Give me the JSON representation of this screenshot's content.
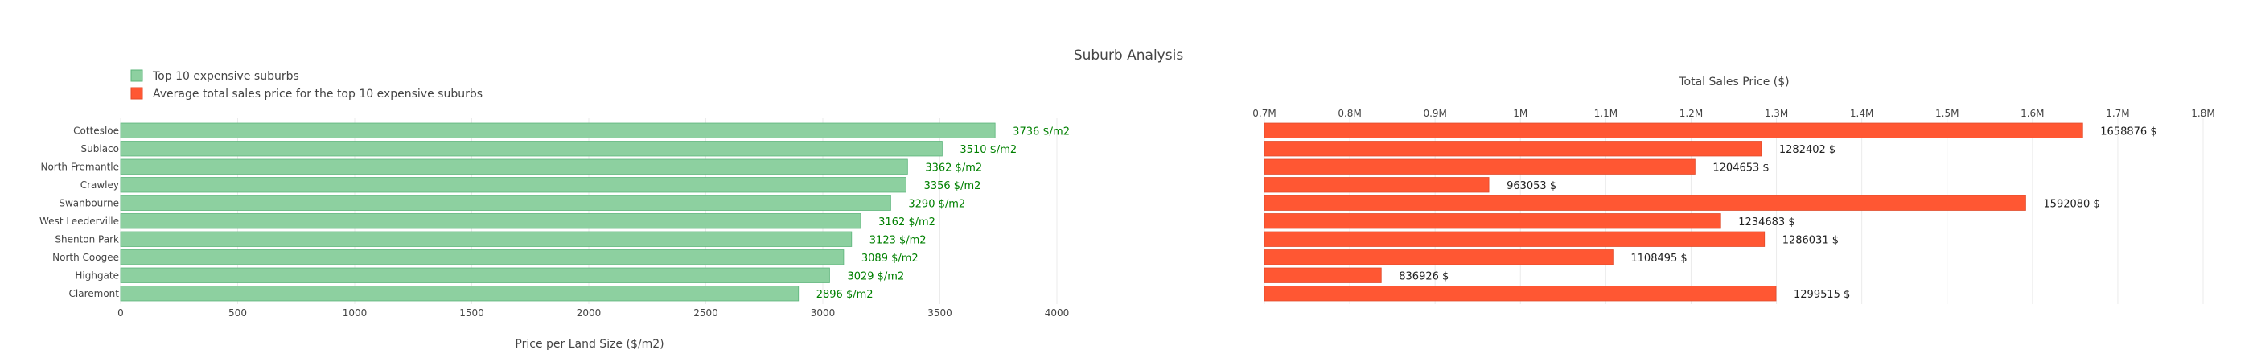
{
  "chart_data": {
    "title": "Suburb Analysis",
    "type": "bar",
    "orientation": "horizontal",
    "categories": [
      "Cottesloe",
      "Subiaco",
      "North Fremantle",
      "Crawley",
      "Swanbourne",
      "West Leederville",
      "Shenton Park",
      "North Coogee",
      "Highgate",
      "Claremont"
    ],
    "legend": {
      "position": "top-left",
      "items": [
        {
          "name": "Top 10 expensive suburbs",
          "color": "#8dd0a0"
        },
        {
          "name": "Average total sales price for the top 10 expensive suburbs",
          "color": "#ff5733"
        }
      ]
    },
    "series": [
      {
        "name": "Top 10 expensive suburbs",
        "axis_title": "Price per Land Size ($/m2)",
        "axis_title_position": "bottom",
        "values": [
          3736,
          3510,
          3362,
          3356,
          3290,
          3162,
          3123,
          3089,
          3029,
          2896
        ],
        "labels": [
          "3736 $/m2",
          "3510 $/m2",
          "3362 $/m2",
          "3356 $/m2",
          "3290 $/m2",
          "3162 $/m2",
          "3123 $/m2",
          "3089 $/m2",
          "3029 $/m2",
          "2896 $/m2"
        ],
        "label_color": "#008000",
        "bar_color": "#8dd0a0",
        "xlim": [
          0,
          4000
        ],
        "ticks": [
          0,
          500,
          1000,
          1500,
          2000,
          2500,
          3000,
          3500,
          4000
        ],
        "tick_labels": [
          "0",
          "500",
          "1000",
          "1500",
          "2000",
          "2500",
          "3000",
          "3500",
          "4000"
        ]
      },
      {
        "name": "Average total sales price for the top 10 expensive suburbs",
        "axis_title": "Total Sales Price ($)",
        "axis_title_position": "top",
        "values": [
          1658876,
          1282402,
          1204653,
          963053,
          1592080,
          1234683,
          1286031,
          1108495,
          836926,
          1299515
        ],
        "labels": [
          "1658876 $",
          "1282402 $",
          "1204653 $",
          "963053 $",
          "1592080 $",
          "1234683 $",
          "1286031 $",
          "1108495 $",
          "836926 $",
          "1299515 $"
        ],
        "label_color": "#222222",
        "bar_color": "#ff5733",
        "xlim": [
          700000,
          1800000
        ],
        "ticks": [
          700000,
          800000,
          900000,
          1000000,
          1100000,
          1200000,
          1300000,
          1400000,
          1500000,
          1600000,
          1700000,
          1800000
        ],
        "tick_labels": [
          "0.7M",
          "0.8M",
          "0.9M",
          "1M",
          "1.1M",
          "1.2M",
          "1.3M",
          "1.4M",
          "1.5M",
          "1.6M",
          "1.7M",
          "1.8M"
        ]
      }
    ]
  }
}
